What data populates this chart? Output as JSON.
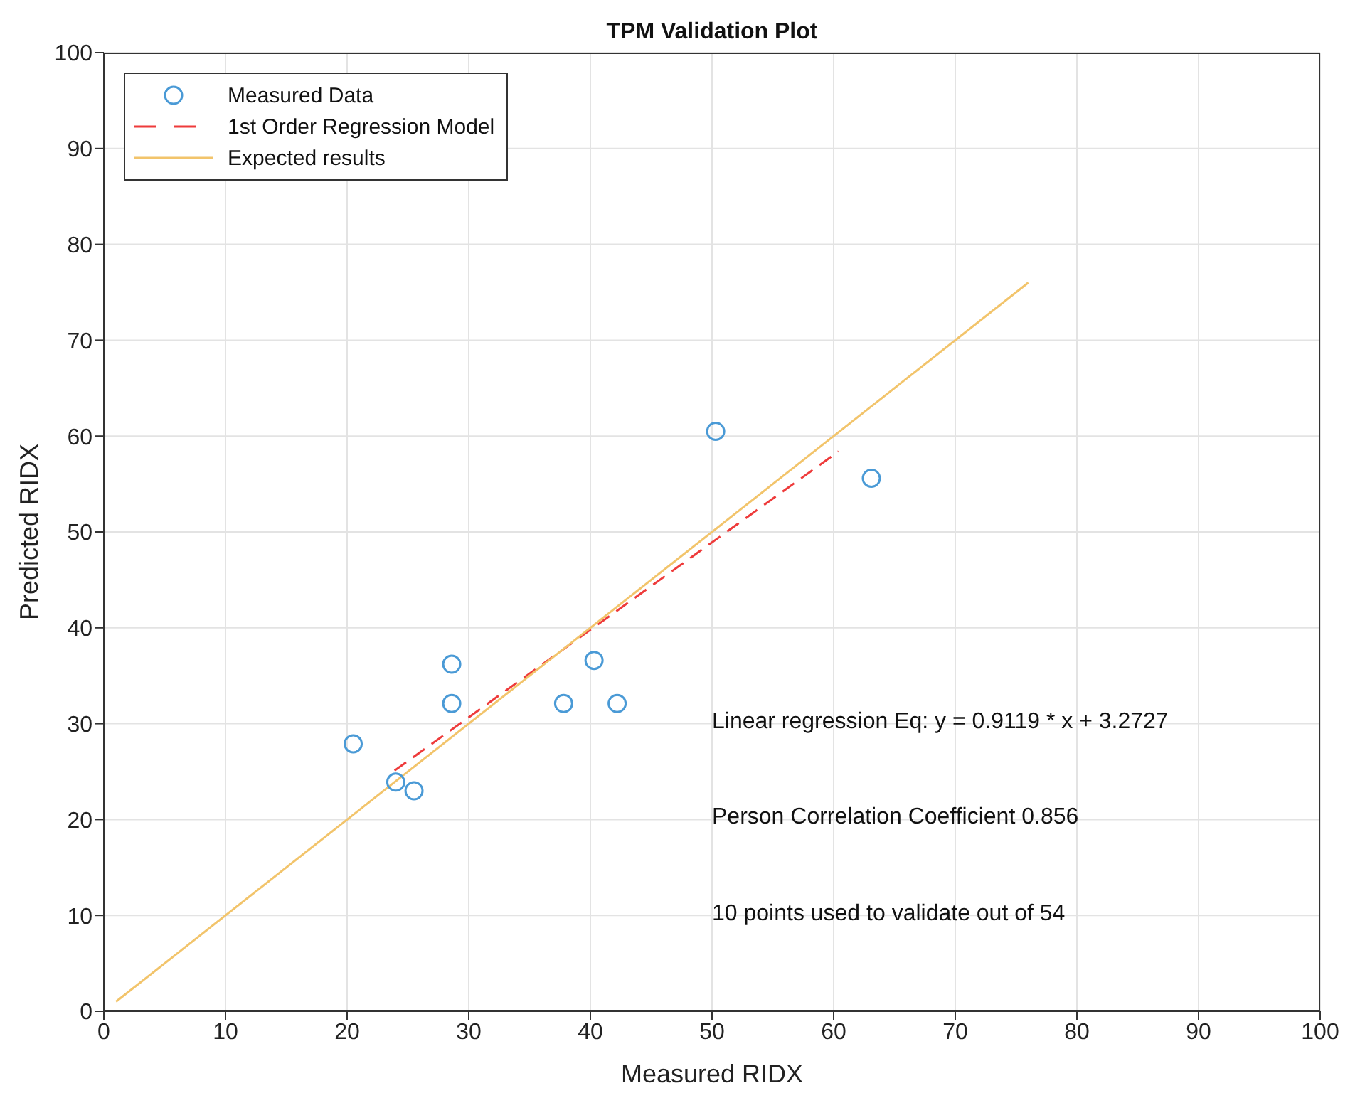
{
  "chart_data": {
    "type": "scatter",
    "title": "TPM Validation Plot",
    "xlabel": "Measured RIDX",
    "ylabel": "Predicted RIDX",
    "xlim": [
      0,
      100
    ],
    "ylim": [
      0,
      100
    ],
    "xticks": [
      0,
      10,
      20,
      30,
      40,
      50,
      60,
      70,
      80,
      90,
      100
    ],
    "yticks": [
      0,
      10,
      20,
      30,
      40,
      50,
      60,
      70,
      80,
      90,
      100
    ],
    "grid": true,
    "legend": "top left",
    "series": [
      {
        "name": "Measured Data",
        "color": "#4a9ad6",
        "marker": "circle",
        "x": [
          20.5,
          24.0,
          25.5,
          28.6,
          28.6,
          37.8,
          40.3,
          42.2,
          50.3,
          63.1
        ],
        "values": [
          27.9,
          23.9,
          23.0,
          36.2,
          32.1,
          32.1,
          36.6,
          32.1,
          60.5,
          55.6
        ]
      },
      {
        "name": "1st Order Regression Model",
        "type": "line",
        "color": "#ee3b3b",
        "marker": "none",
        "line_style": "dashed",
        "x": [
          23.9,
          60.4
        ],
        "values": [
          25.1,
          58.4
        ]
      },
      {
        "name": "Expected results",
        "type": "line",
        "color": "#f2c46b",
        "marker": "none",
        "line_style": "solid",
        "x": [
          1,
          76
        ],
        "values": [
          1,
          76
        ]
      }
    ],
    "annotations": [
      "Linear regression Eq: y = 0.9119 * x + 3.2727",
      "Person Correlation Coefficient 0.856",
      "10 points used to validate out of 54"
    ]
  }
}
